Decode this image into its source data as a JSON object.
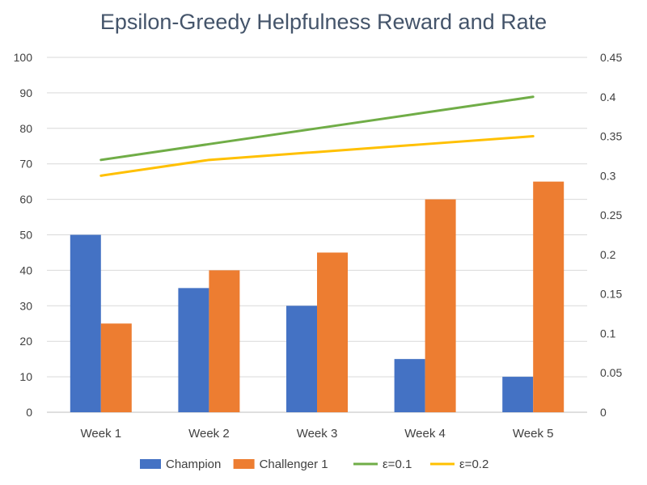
{
  "chart_data": {
    "type": "bar",
    "title": "Epsilon-Greedy Helpfulness Reward and Rate",
    "categories": [
      "Week 1",
      "Week 2",
      "Week 3",
      "Week 4",
      "Week 5"
    ],
    "series": [
      {
        "name": "Champion",
        "type": "bar",
        "axis": "left",
        "color": "#4472c4",
        "values": [
          50,
          35,
          30,
          15,
          10
        ]
      },
      {
        "name": "Challenger 1",
        "type": "bar",
        "axis": "left",
        "color": "#ed7d31",
        "values": [
          25,
          40,
          45,
          60,
          65
        ]
      },
      {
        "name": "ε=0.1",
        "type": "line",
        "axis": "right",
        "color": "#70ad47",
        "values": [
          0.32,
          0.34,
          0.36,
          0.38,
          0.4
        ]
      },
      {
        "name": "ε=0.2",
        "type": "line",
        "axis": "right",
        "color": "#ffc000",
        "values": [
          0.3,
          0.32,
          0.33,
          0.34,
          0.35
        ]
      }
    ],
    "ylim": [
      0,
      100
    ],
    "y_ticks": [
      "0",
      "10",
      "20",
      "30",
      "40",
      "50",
      "60",
      "70",
      "80",
      "90",
      "100"
    ],
    "y2lim": [
      0,
      0.45
    ],
    "y2_ticks": [
      "0",
      "0.05",
      "0.1",
      "0.15",
      "0.2",
      "0.25",
      "0.3",
      "0.35",
      "0.4",
      "0.45"
    ],
    "grid": true,
    "legend_position": "bottom"
  }
}
